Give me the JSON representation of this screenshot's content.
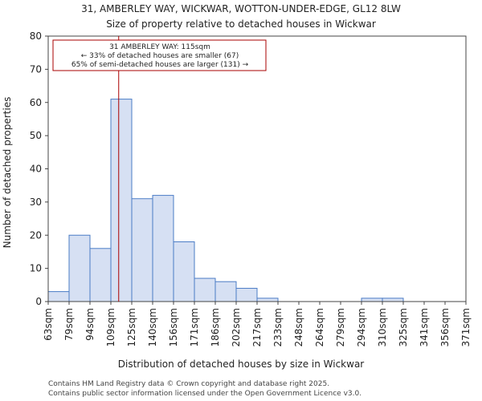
{
  "chart_data": {
    "type": "bar",
    "title_lines": [
      "31, AMBERLEY WAY, WICKWAR, WOTTON-UNDER-EDGE, GL12 8LW",
      "Size of property relative to detached houses in Wickwar"
    ],
    "xlabel": "Distribution of detached houses by size in Wickwar",
    "ylabel": "Number of detached properties",
    "ylim": [
      0,
      80
    ],
    "yticks": [
      0,
      10,
      20,
      30,
      40,
      50,
      60,
      70,
      80
    ],
    "bin_edges": [
      63,
      79,
      94,
      109,
      125,
      140,
      156,
      171,
      186,
      202,
      217,
      233,
      248,
      264,
      279,
      294,
      310,
      325,
      341,
      356,
      371
    ],
    "xtick_labels": [
      "63sqm",
      "79sqm",
      "94sqm",
      "109sqm",
      "125sqm",
      "140sqm",
      "156sqm",
      "171sqm",
      "186sqm",
      "202sqm",
      "217sqm",
      "233sqm",
      "248sqm",
      "264sqm",
      "279sqm",
      "294sqm",
      "310sqm",
      "325sqm",
      "341sqm",
      "356sqm",
      "371sqm"
    ],
    "values": [
      3,
      20,
      16,
      61,
      31,
      32,
      18,
      7,
      6,
      4,
      1,
      0,
      0,
      0,
      0,
      1,
      1,
      0,
      0,
      0
    ],
    "marker": {
      "value": 115,
      "color": "#aa0000"
    },
    "annotation": {
      "lines": [
        "31 AMBERLEY WAY: 115sqm",
        "← 33% of detached houses are smaller (67)",
        "65% of semi-detached houses are larger (131) →"
      ],
      "border_color": "#aa0000"
    },
    "colors": {
      "bar_fill": "#d6e0f3",
      "bar_edge": "#4b7cc6"
    }
  },
  "footer": {
    "lines": [
      "Contains HM Land Registry data © Crown copyright and database right 2025.",
      "Contains public sector information licensed under the Open Government Licence v3.0."
    ]
  }
}
